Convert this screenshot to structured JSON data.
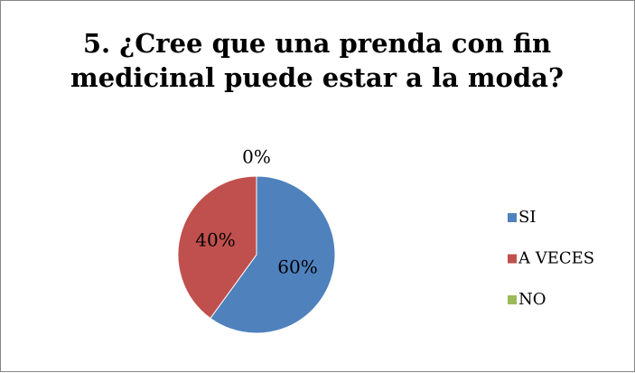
{
  "chart_data": {
    "type": "pie",
    "title": "5. ¿Cree que una prenda con fin medicinal puede estar a la moda?",
    "categories": [
      "SI",
      "A VECES",
      "NO"
    ],
    "values": [
      60,
      40,
      0
    ],
    "value_labels": [
      "60%",
      "40%",
      "0%"
    ],
    "colors": [
      "#4f81bd",
      "#c0504d",
      "#9bbb59"
    ],
    "legend": "right"
  }
}
